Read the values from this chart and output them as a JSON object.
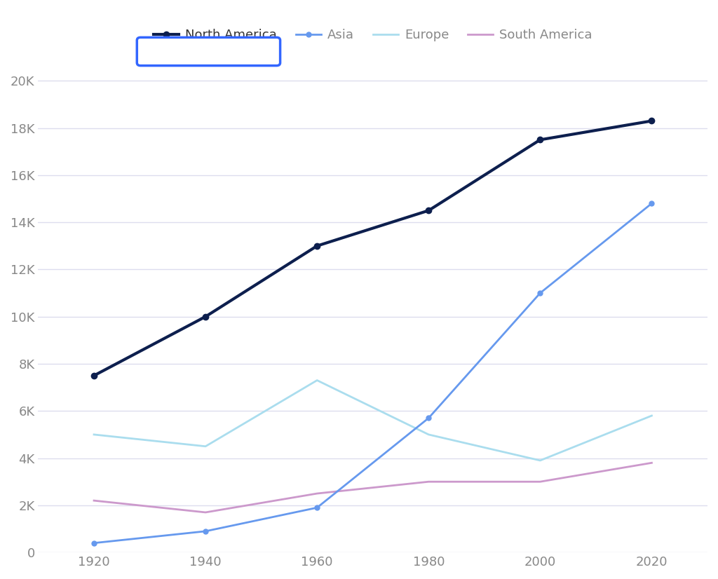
{
  "years": [
    1920,
    1940,
    1960,
    1980,
    2000,
    2020
  ],
  "north_america": [
    7500,
    10000,
    13000,
    14500,
    17500,
    18300
  ],
  "asia": [
    400,
    900,
    1900,
    5700,
    11000,
    14800
  ],
  "europe": [
    5000,
    4500,
    7300,
    5000,
    3900,
    5800
  ],
  "south_america": [
    2200,
    1700,
    2500,
    3000,
    3000,
    3800
  ],
  "colors": {
    "north_america": "#0d1f4e",
    "asia": "#6699ee",
    "europe": "#aaddee",
    "south_america": "#cc99cc"
  },
  "legend_box_color": "#3366ff",
  "background_color": "#ffffff",
  "grid_color": "#ddddee",
  "tick_color": "#888888",
  "ylim": [
    0,
    21000
  ],
  "yticks": [
    0,
    2000,
    4000,
    6000,
    8000,
    10000,
    12000,
    14000,
    16000,
    18000,
    20000
  ],
  "ytick_labels": [
    "0",
    "2K",
    "4K",
    "6K",
    "8K",
    "10K",
    "12K",
    "14K",
    "16K",
    "18K",
    "20K"
  ],
  "xtick_labels": [
    "1920",
    "1940",
    "1960",
    "1980",
    "2000",
    "2020"
  ],
  "legend_labels": [
    "North America",
    "Asia",
    "Europe",
    "South America"
  ]
}
